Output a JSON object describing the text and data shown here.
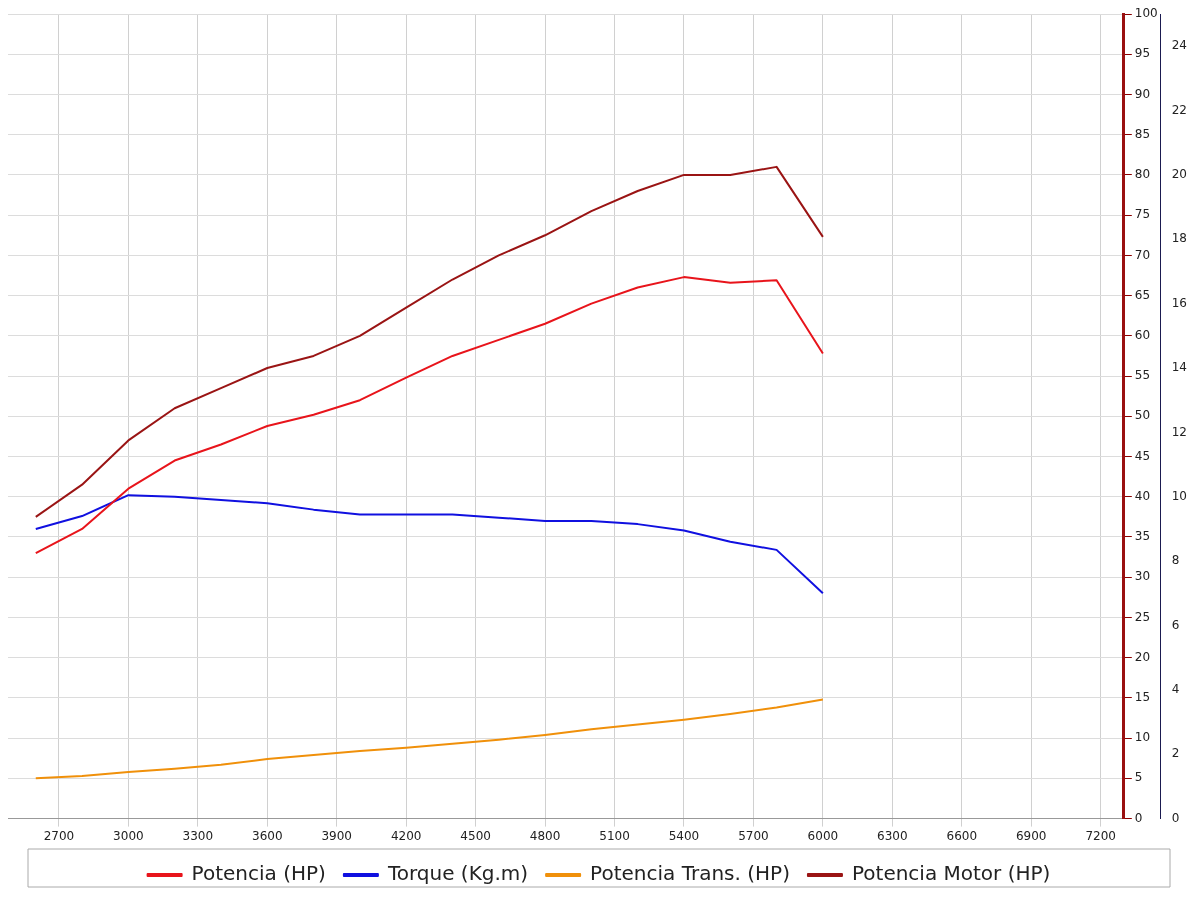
{
  "chart_data": {
    "type": "line",
    "x": [
      2600,
      2800,
      3000,
      3200,
      3400,
      3600,
      3800,
      4000,
      4200,
      4400,
      4600,
      4800,
      5000,
      5200,
      5400,
      5600,
      5800,
      6000
    ],
    "xlim": [
      2480,
      7300
    ],
    "xticks": [
      2700,
      3000,
      3300,
      3600,
      3900,
      4200,
      4500,
      4800,
      5100,
      5400,
      5700,
      6000,
      6300,
      6600,
      6900,
      7200
    ],
    "ylim": [
      0,
      100
    ],
    "yticks": [
      0,
      5,
      10,
      15,
      20,
      25,
      30,
      35,
      40,
      45,
      50,
      55,
      60,
      65,
      70,
      75,
      80,
      85,
      90,
      95,
      100
    ],
    "y2lim": [
      0,
      25
    ],
    "y2ticks": [
      0,
      2,
      4,
      6,
      8,
      10,
      12,
      14,
      16,
      18,
      20,
      22,
      24
    ],
    "grid": true,
    "legend": "bottom",
    "marker": "none",
    "line_style": "solid",
    "series": [
      {
        "name": "Potencia (HP)",
        "color": "#e8141b",
        "values": [
          33,
          36,
          41,
          44.5,
          46.5,
          48.8,
          50.2,
          52,
          54.8,
          57.5,
          59.5,
          61.5,
          64,
          66,
          67.3,
          66.6,
          66.9,
          57.8
        ]
      },
      {
        "name": "Torque (Kg.m)",
        "color": "#1010e0",
        "axis": "y2",
        "values": [
          9.0,
          9.4,
          10.05,
          10.0,
          9.9,
          9.8,
          9.6,
          9.45,
          9.45,
          9.45,
          9.35,
          9.25,
          9.25,
          9.15,
          8.95,
          8.6,
          8.35,
          7.0
        ]
      },
      {
        "name": "Potencia Trans. (HP)",
        "color": "#f0900a",
        "values": [
          5,
          5.3,
          5.8,
          6.2,
          6.7,
          7.4,
          7.9,
          8.4,
          8.8,
          9.3,
          9.8,
          10.4,
          11.1,
          11.7,
          12.3,
          13,
          13.8,
          14.8
        ]
      },
      {
        "name": "Potencia Motor (HP)",
        "color": "#9a1414",
        "values": [
          37.5,
          41.5,
          47,
          51,
          53.5,
          56,
          57.5,
          60,
          63.5,
          67,
          70,
          72.5,
          75.5,
          78,
          80,
          80,
          81,
          72.3
        ]
      }
    ]
  }
}
